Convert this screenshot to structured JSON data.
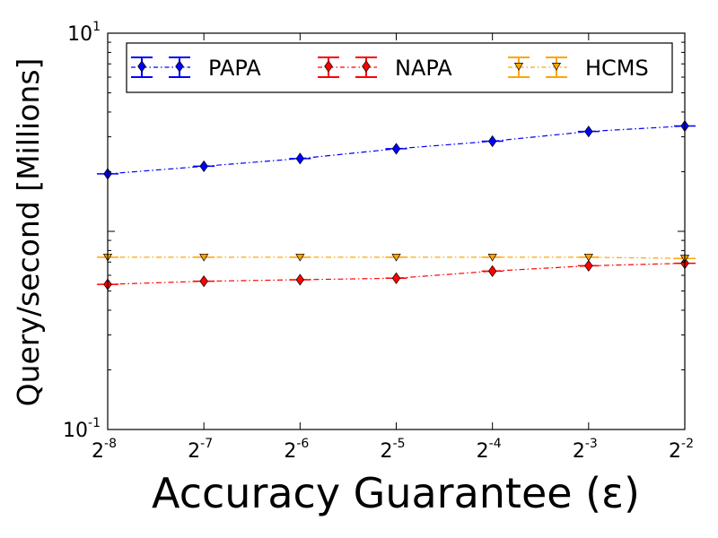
{
  "chart_data": {
    "type": "line",
    "title": "",
    "xlabel": "Accuracy Guarantee (ε)",
    "ylabel": "Query/second [Millions]",
    "x_scale": "log2",
    "y_scale": "log10",
    "xlim": [
      0.00390625,
      0.25
    ],
    "ylim": [
      0.1,
      10
    ],
    "x": [
      0.00390625,
      0.0078125,
      0.015625,
      0.03125,
      0.0625,
      0.125,
      0.25
    ],
    "x_tick_labels": [
      {
        "base": "2",
        "exp": "-8"
      },
      {
        "base": "2",
        "exp": "-7"
      },
      {
        "base": "2",
        "exp": "-6"
      },
      {
        "base": "2",
        "exp": "-5"
      },
      {
        "base": "2",
        "exp": "-4"
      },
      {
        "base": "2",
        "exp": "-3"
      },
      {
        "base": "2",
        "exp": "-2"
      }
    ],
    "y_tick_labels": [
      {
        "value": 0.1,
        "base": "10",
        "exp": "-1"
      },
      {
        "value": 10,
        "base": "10",
        "exp": "1"
      }
    ],
    "legend_position": "top",
    "series": [
      {
        "name": "PAPA",
        "color": "#0000ff",
        "marker": "diamond",
        "line_style": "dash-dot",
        "values": [
          1.95,
          2.13,
          2.33,
          2.61,
          2.85,
          3.19,
          3.4
        ]
      },
      {
        "name": "NAPA",
        "color": "#ff0000",
        "marker": "diamond",
        "line_style": "dash-dot",
        "values": [
          0.54,
          0.56,
          0.57,
          0.58,
          0.63,
          0.67,
          0.69
        ]
      },
      {
        "name": "HCMS",
        "color": "#ffa500",
        "marker": "triangle-down",
        "line_style": "dash-dot",
        "values": [
          0.74,
          0.74,
          0.74,
          0.74,
          0.74,
          0.74,
          0.73
        ]
      }
    ]
  }
}
